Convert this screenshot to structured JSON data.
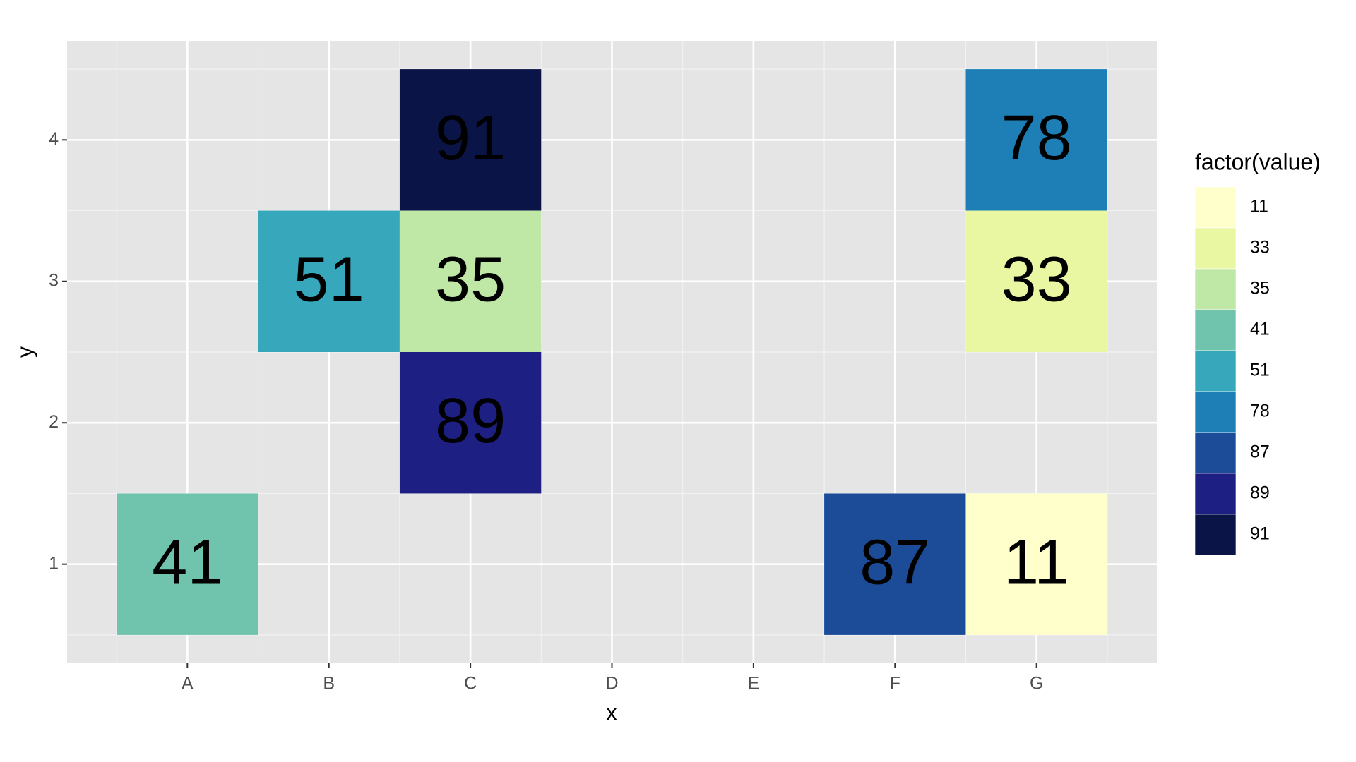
{
  "chart_data": {
    "type": "heatmap",
    "x_label": "x",
    "y_label": "y",
    "categories": [
      "A",
      "B",
      "C",
      "D",
      "E",
      "F",
      "G"
    ],
    "ylim": [
      0.3,
      4.7
    ],
    "yticks": [
      1,
      2,
      3,
      4
    ],
    "grid": true,
    "tiles": [
      {
        "x": "A",
        "y": 1,
        "value": 41
      },
      {
        "x": "B",
        "y": 3,
        "value": 51
      },
      {
        "x": "C",
        "y": 4,
        "value": 91
      },
      {
        "x": "C",
        "y": 3,
        "value": 35
      },
      {
        "x": "C",
        "y": 2,
        "value": 89
      },
      {
        "x": "F",
        "y": 1,
        "value": 87
      },
      {
        "x": "G",
        "y": 4,
        "value": 78
      },
      {
        "x": "G",
        "y": 3,
        "value": 33
      },
      {
        "x": "G",
        "y": 1,
        "value": 11
      }
    ],
    "legend": {
      "title": "factor(value)",
      "items": [
        {
          "label": 11,
          "color": "#ffffcc"
        },
        {
          "label": 33,
          "color": "#e9f7a3"
        },
        {
          "label": 35,
          "color": "#bfe7a5"
        },
        {
          "label": 41,
          "color": "#70c4ae"
        },
        {
          "label": 51,
          "color": "#37a8bb"
        },
        {
          "label": 78,
          "color": "#1e7fb6"
        },
        {
          "label": 87,
          "color": "#1c4c98"
        },
        {
          "label": 89,
          "color": "#1e1f82"
        },
        {
          "label": 91,
          "color": "#0b1446"
        }
      ]
    }
  }
}
